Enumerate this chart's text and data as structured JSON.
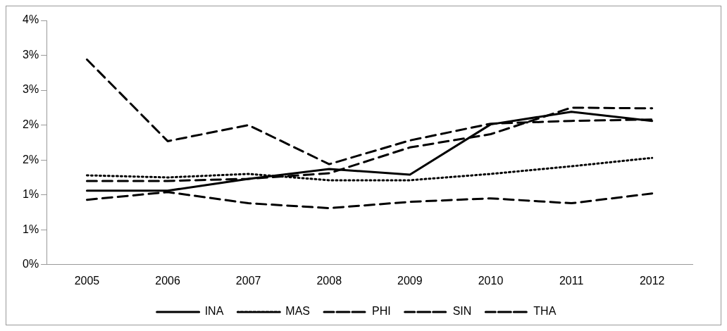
{
  "chart_data": {
    "type": "line",
    "categories": [
      "2005",
      "2006",
      "2007",
      "2008",
      "2009",
      "2010",
      "2011",
      "2012"
    ],
    "series": [
      {
        "name": "INA",
        "color": "#000000",
        "line_style": "solid",
        "values": [
          1.06,
          1.06,
          1.23,
          1.37,
          1.29,
          2.01,
          2.19,
          2.06
        ]
      },
      {
        "name": "MAS",
        "color": "#000000",
        "line_style": "dotted",
        "values": [
          1.28,
          1.25,
          1.3,
          1.21,
          1.21,
          1.3,
          1.41,
          1.53
        ]
      },
      {
        "name": "PHI",
        "color": "#000000",
        "line_style": "dashed",
        "values": [
          2.94,
          1.77,
          2.0,
          1.44,
          1.78,
          2.02,
          2.06,
          2.08
        ]
      },
      {
        "name": "SIN",
        "color": "#000000",
        "line_style": "dashed",
        "values": [
          1.2,
          1.2,
          1.23,
          1.31,
          1.68,
          1.87,
          2.25,
          2.24
        ]
      },
      {
        "name": "THA",
        "color": "#000000",
        "line_style": "dashed",
        "values": [
          0.93,
          1.04,
          0.88,
          0.81,
          0.9,
          0.95,
          0.88,
          1.02
        ]
      }
    ],
    "ylim": [
      0,
      3.5
    ],
    "yticks": [
      {
        "value": 0,
        "label": "0%"
      },
      {
        "value": 0.5,
        "label": "1%"
      },
      {
        "value": 1,
        "label": "1%"
      },
      {
        "value": 1.5,
        "label": "2%"
      },
      {
        "value": 2,
        "label": "2%"
      },
      {
        "value": 2.5,
        "label": "3%"
      },
      {
        "value": 3,
        "label": "3%"
      },
      {
        "value": 3.5,
        "label": "4%"
      }
    ],
    "grid": false,
    "legend": "bottom",
    "marker": "none"
  }
}
